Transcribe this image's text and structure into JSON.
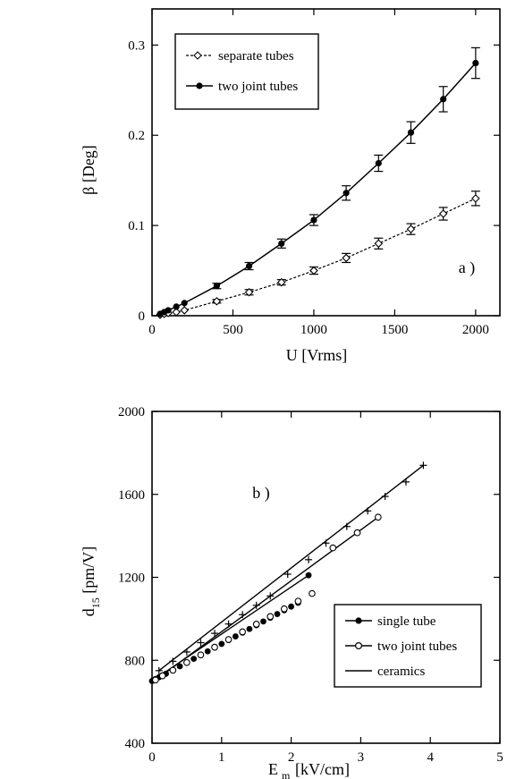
{
  "chart_data": [
    {
      "type": "line",
      "panel_label": "a )",
      "xlabel": "U  [Vrms]",
      "ylabel": "β  [Deg]",
      "xlim": [
        0,
        2150
      ],
      "ylim": [
        0,
        0.34
      ],
      "xticks": [
        0,
        500,
        1000,
        1500,
        2000
      ],
      "yticks": [
        0,
        0.1,
        0.2,
        0.3
      ],
      "xtick_labels": [
        "0",
        "500",
        "1000",
        "1500",
        "2000"
      ],
      "ytick_labels": [
        "0",
        "0.1",
        "0.2",
        "0.3"
      ],
      "legend_position": "top-left",
      "series": [
        {
          "name": "separate tubes",
          "marker": "open-diamond",
          "line": "dashed",
          "x": [
            50,
            75,
            100,
            150,
            200,
            400,
            600,
            800,
            1000,
            1200,
            1400,
            1600,
            1800,
            2000
          ],
          "y": [
            0.001,
            0.002,
            0.003,
            0.004,
            0.006,
            0.016,
            0.026,
            0.037,
            0.05,
            0.064,
            0.08,
            0.096,
            0.113,
            0.13
          ],
          "err": [
            0,
            0,
            0,
            0,
            0,
            0.002,
            0.003,
            0.003,
            0.004,
            0.005,
            0.006,
            0.006,
            0.007,
            0.008
          ]
        },
        {
          "name": "two joint tubes",
          "marker": "filled-circle",
          "line": "solid",
          "x": [
            50,
            75,
            100,
            150,
            200,
            400,
            600,
            800,
            1000,
            1200,
            1400,
            1600,
            1800,
            2000
          ],
          "y": [
            0.002,
            0.004,
            0.006,
            0.01,
            0.014,
            0.033,
            0.055,
            0.08,
            0.106,
            0.136,
            0.169,
            0.203,
            0.24,
            0.28
          ],
          "err": [
            0,
            0,
            0,
            0,
            0,
            0.003,
            0.004,
            0.005,
            0.006,
            0.008,
            0.009,
            0.012,
            0.014,
            0.017
          ]
        }
      ]
    },
    {
      "type": "line",
      "panel_label": "b )",
      "xlabel": "E_m  [kV/cm]",
      "ylabel": "d_15  [pm/V]",
      "xlim": [
        0,
        5
      ],
      "ylim": [
        400,
        2000
      ],
      "xticks": [
        0,
        1,
        2,
        3,
        4,
        5
      ],
      "yticks": [
        400,
        800,
        1200,
        1600,
        2000
      ],
      "xtick_labels": [
        "0",
        "1",
        "2",
        "3",
        "4",
        "5"
      ],
      "ytick_labels": [
        "400",
        "800",
        "1200",
        "1600",
        "2000"
      ],
      "legend_position": "bottom-right",
      "series": [
        {
          "name": "single tube",
          "marker": "filled-circle",
          "x": [
            0.0,
            0.05,
            0.1,
            0.15,
            0.2,
            0.3,
            0.4,
            0.5,
            0.6,
            0.7,
            0.8,
            0.9,
            1.0,
            1.1,
            1.2,
            1.3,
            1.4,
            1.5,
            1.6,
            1.7,
            1.8,
            1.9,
            2.0,
            2.1,
            2.25
          ],
          "y": [
            700,
            710,
            718,
            727,
            735,
            753,
            771,
            789,
            807,
            825,
            843,
            861,
            879,
            897,
            915,
            933,
            951,
            969,
            987,
            1005,
            1023,
            1041,
            1059,
            1077,
            1210
          ]
        },
        {
          "name": "two joint tubes",
          "marker": "open-circle",
          "x": [
            0.05,
            0.15,
            0.3,
            0.5,
            0.7,
            0.9,
            1.1,
            1.3,
            1.5,
            1.7,
            1.9,
            2.1,
            2.3,
            2.6,
            2.95,
            3.25
          ],
          "y": [
            705,
            725,
            752,
            789,
            826,
            863,
            900,
            937,
            974,
            1011,
            1048,
            1085,
            1122,
            1342,
            1415,
            1490
          ]
        },
        {
          "name": "ceramics",
          "marker": "plus",
          "x": [
            0.1,
            0.3,
            0.5,
            0.7,
            0.9,
            1.1,
            1.3,
            1.5,
            1.7,
            1.95,
            2.25,
            2.5,
            2.8,
            3.1,
            3.35,
            3.65,
            3.9
          ],
          "y": [
            750,
            795,
            840,
            885,
            930,
            975,
            1020,
            1065,
            1110,
            1215,
            1285,
            1365,
            1445,
            1520,
            1590,
            1660,
            1740
          ]
        }
      ]
    }
  ]
}
